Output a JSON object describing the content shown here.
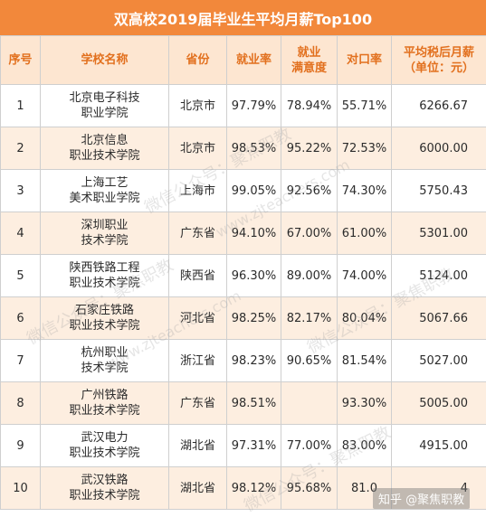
{
  "title": "双高校2019届毕业生平均月薪Top100",
  "columns": [
    "序号",
    "学校名称",
    "省份",
    "就业率",
    "就业\n满意度",
    "对口率",
    "平均税后月薪\n（单位：元）"
  ],
  "rows": [
    {
      "rank": "1",
      "school": "北京电子科技\n职业学院",
      "province": "北京市",
      "employment": "97.79%",
      "satisfaction": "78.94%",
      "match": "55.71%",
      "salary": "6266.67"
    },
    {
      "rank": "2",
      "school": "北京信息\n职业技术学院",
      "province": "北京市",
      "employment": "98.53%",
      "satisfaction": "95.22%",
      "match": "72.53%",
      "salary": "6000.00"
    },
    {
      "rank": "3",
      "school": "上海工艺\n美术职业学院",
      "province": "上海市",
      "employment": "99.05%",
      "satisfaction": "92.56%",
      "match": "74.30%",
      "salary": "5750.43"
    },
    {
      "rank": "4",
      "school": "深圳职业\n技术学院",
      "province": "广东省",
      "employment": "94.10%",
      "satisfaction": "67.00%",
      "match": "61.00%",
      "salary": "5301.00"
    },
    {
      "rank": "5",
      "school": "陕西铁路工程\n职业技术学院",
      "province": "陕西省",
      "employment": "96.30%",
      "satisfaction": "89.00%",
      "match": "74.00%",
      "salary": "5124.00"
    },
    {
      "rank": "6",
      "school": "石家庄铁路\n职业技术学院",
      "province": "河北省",
      "employment": "98.25%",
      "satisfaction": "82.17%",
      "match": "80.04%",
      "salary": "5067.66"
    },
    {
      "rank": "7",
      "school": "杭州职业\n技术学院",
      "province": "浙江省",
      "employment": "98.23%",
      "satisfaction": "90.65%",
      "match": "81.54%",
      "salary": "5027.00"
    },
    {
      "rank": "8",
      "school": "广州铁路\n职业技术学院",
      "province": "广东省",
      "employment": "98.51%",
      "satisfaction": "",
      "match": "93.30%",
      "salary": "5005.00"
    },
    {
      "rank": "9",
      "school": "武汉电力\n职业技术学院",
      "province": "湖北省",
      "employment": "97.31%",
      "satisfaction": "77.00%",
      "match": "83.00%",
      "salary": "4915.00"
    },
    {
      "rank": "10",
      "school": "武汉铁路\n职业技术学院",
      "province": "湖北省",
      "employment": "98.12%",
      "satisfaction": "95.68%",
      "match": "81.0",
      "salary": "4"
    }
  ],
  "watermarks": {
    "text_a": "微信公众号：聚焦职教",
    "text_b": "www.zjteachers.com",
    "corner": "知乎 @聚焦职教"
  }
}
